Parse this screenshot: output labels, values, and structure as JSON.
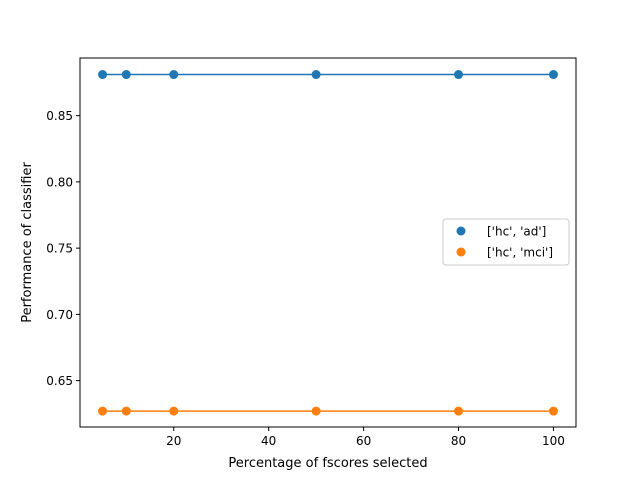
{
  "chart_data": {
    "type": "line",
    "title": "",
    "xlabel": "Percentage of fscores selected",
    "ylabel": "Performance of classifier",
    "xlim": [
      0.25,
      104.75
    ],
    "ylim": [
      0.615,
      0.8935
    ],
    "xticks": [
      20,
      40,
      60,
      80,
      100
    ],
    "xtick_labels": [
      "20",
      "40",
      "60",
      "80",
      "100"
    ],
    "yticks": [
      0.65,
      0.7,
      0.75,
      0.8,
      0.85
    ],
    "ytick_labels": [
      "0.65",
      "0.70",
      "0.75",
      "0.80",
      "0.85"
    ],
    "grid": false,
    "legend_position": "center right",
    "x": [
      5,
      10,
      20,
      50,
      80,
      100
    ],
    "series": [
      {
        "name": "['hc', 'ad']",
        "color": "#1f77b4",
        "values": [
          0.881,
          0.881,
          0.881,
          0.881,
          0.881,
          0.881
        ]
      },
      {
        "name": "['hc', 'mci']",
        "color": "#ff7f0e",
        "values": [
          0.627,
          0.627,
          0.627,
          0.627,
          0.627,
          0.627
        ]
      }
    ]
  }
}
